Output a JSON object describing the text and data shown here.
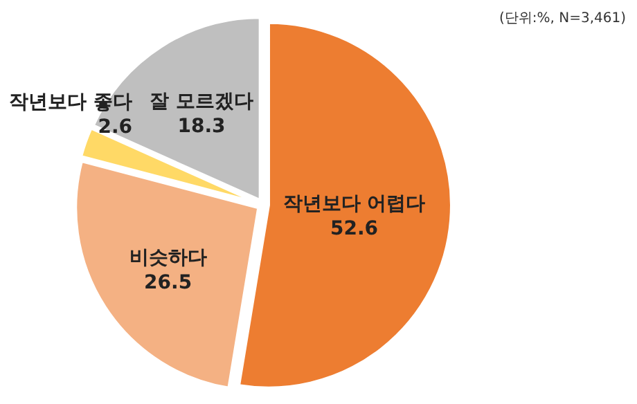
{
  "chart_data": {
    "type": "pie",
    "categories": [
      "작년보다 어렵다",
      "비슷하다",
      "작년보다 좋다",
      "잘 모르겠다"
    ],
    "values": [
      52.6,
      26.5,
      2.6,
      18.3
    ],
    "colors": [
      "#ed7d31",
      "#f4b183",
      "#ffd966",
      "#bfbfbf"
    ],
    "data_labels": true,
    "annotations": [
      "(단위:%, N=3,461)"
    ]
  }
}
